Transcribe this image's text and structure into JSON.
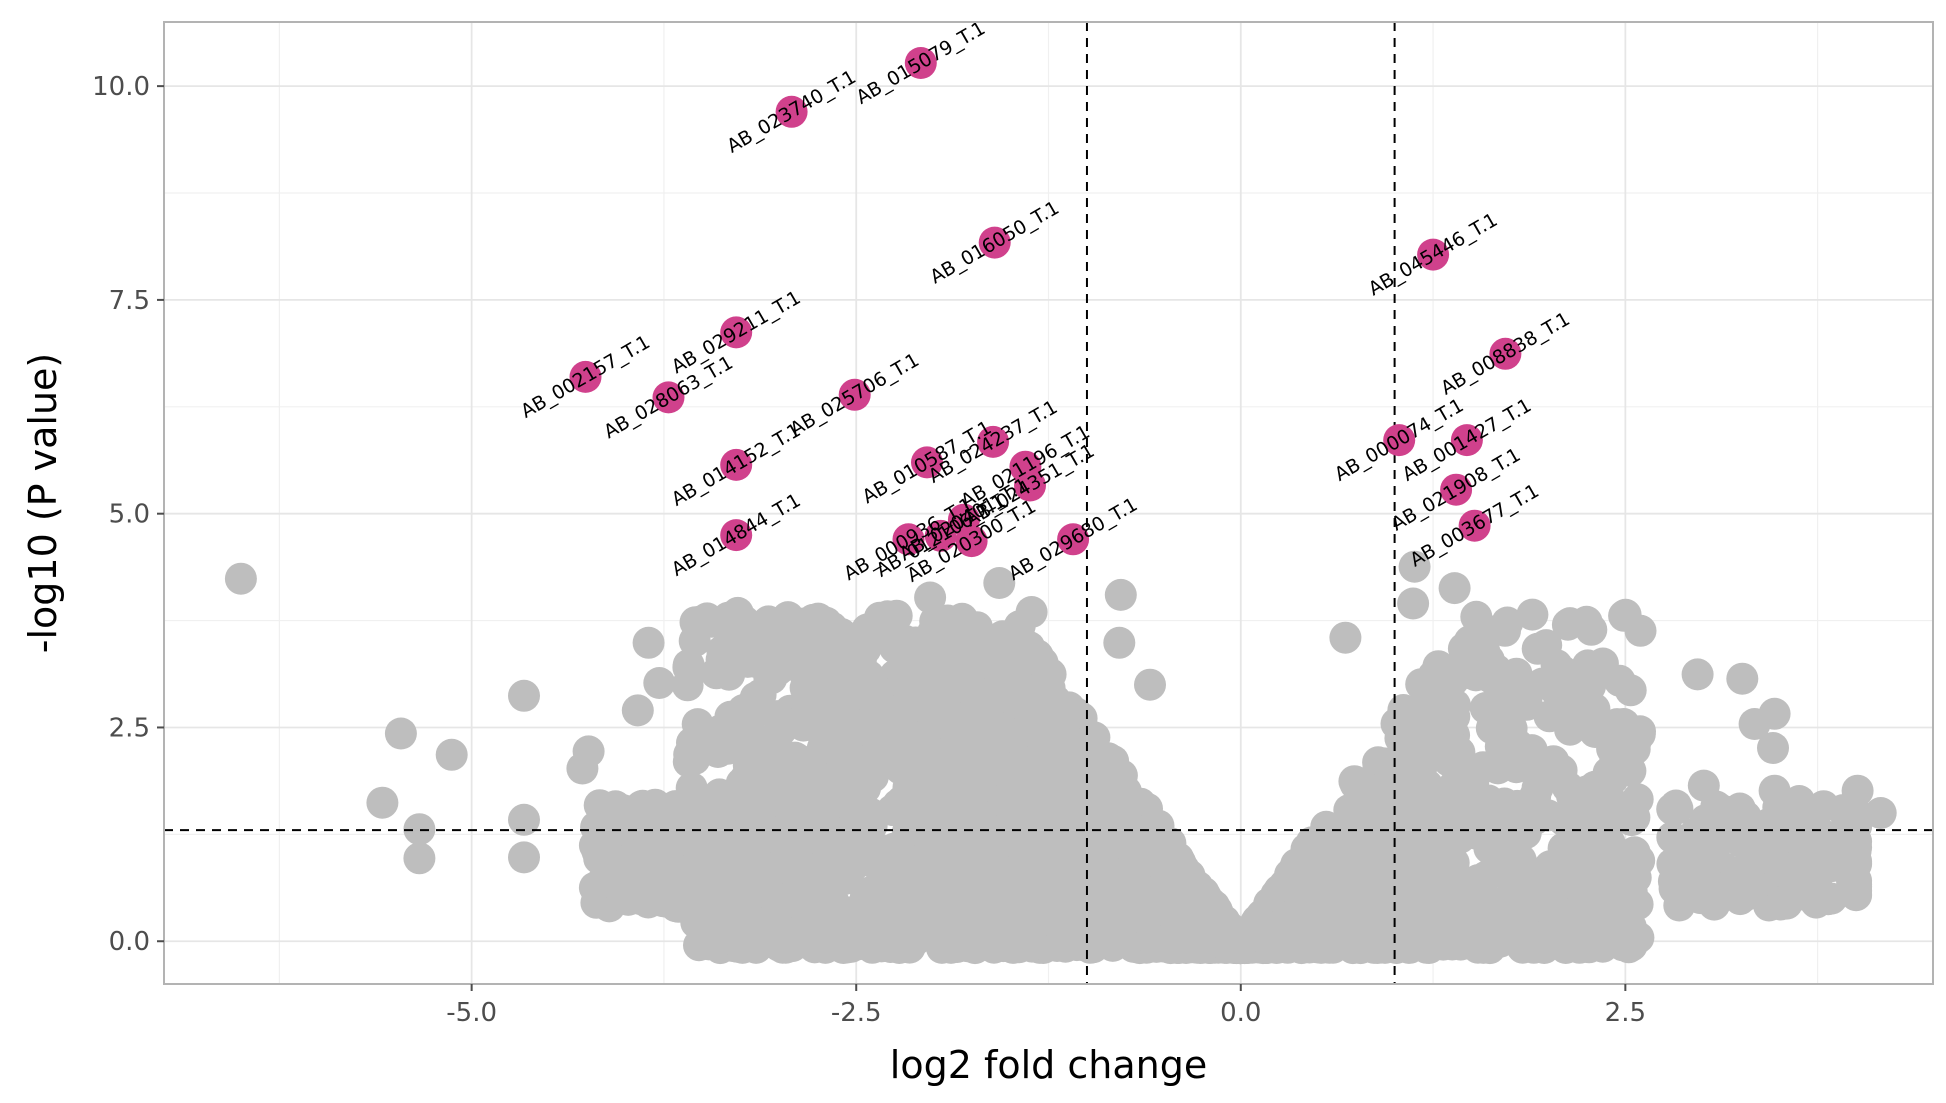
{
  "chart_data": {
    "type": "scatter",
    "xlabel": "log2 fold change",
    "ylabel": "-log10 (P value)",
    "xlim": [
      -7.0,
      4.5
    ],
    "ylim": [
      -0.5,
      10.75
    ],
    "x_ticks": [
      {
        "value": -5.0,
        "label": "-5.0"
      },
      {
        "value": -2.5,
        "label": "-2.5"
      },
      {
        "value": 0.0,
        "label": "0.0"
      },
      {
        "value": 2.5,
        "label": "2.5"
      }
    ],
    "y_ticks": [
      {
        "value": 0.0,
        "label": "0.0"
      },
      {
        "value": 2.5,
        "label": "2.5"
      },
      {
        "value": 5.0,
        "label": "5.0"
      },
      {
        "value": 7.5,
        "label": "7.5"
      },
      {
        "value": 10.0,
        "label": "10.0"
      }
    ],
    "grid": true,
    "thresholds": {
      "vertical": [
        -1.0,
        1.0
      ],
      "horizontal": [
        1.3
      ]
    },
    "colors": {
      "significant": "#d0418c",
      "background_points": "#bebebe",
      "grid": "#e6e6e6",
      "panel_border": "#b3b3b3"
    },
    "significant_points": [
      {
        "x": -2.08,
        "y": 10.27,
        "label": "AB_015079_T.1"
      },
      {
        "x": -2.92,
        "y": 9.7,
        "label": "AB_023740_T.1"
      },
      {
        "x": -1.6,
        "y": 8.17,
        "label": "AB_016050_T.1"
      },
      {
        "x": 1.25,
        "y": 8.03,
        "label": "AB_045446_T.1"
      },
      {
        "x": -3.28,
        "y": 7.12,
        "label": "AB_029211_T.1"
      },
      {
        "x": 1.72,
        "y": 6.87,
        "label": "AB_008838_T.1"
      },
      {
        "x": -4.26,
        "y": 6.6,
        "label": "AB_002157_T.1"
      },
      {
        "x": -3.72,
        "y": 6.36,
        "label": "AB_028063_T.1"
      },
      {
        "x": -2.51,
        "y": 6.39,
        "label": "AB_025706_T.1"
      },
      {
        "x": -1.61,
        "y": 5.84,
        "label": "AB_024237_T.1"
      },
      {
        "x": 1.03,
        "y": 5.86,
        "label": "AB_000074_T.1"
      },
      {
        "x": 1.47,
        "y": 5.86,
        "label": "AB_001427_T.1"
      },
      {
        "x": -2.04,
        "y": 5.6,
        "label": "AB_010587_T.1"
      },
      {
        "x": -3.28,
        "y": 5.57,
        "label": "AB_014152_T.1"
      },
      {
        "x": -1.4,
        "y": 5.55,
        "label": "AB_021196_T.1"
      },
      {
        "x": -1.37,
        "y": 5.33,
        "label": "AB_024351_T.1"
      },
      {
        "x": 1.4,
        "y": 5.28,
        "label": "AB_021908_T.1"
      },
      {
        "x": -1.8,
        "y": 4.93,
        "label": "AB_020401_T.1"
      },
      {
        "x": 1.52,
        "y": 4.86,
        "label": "AB_003677_T.1"
      },
      {
        "x": -3.28,
        "y": 4.75,
        "label": "AB_014844_T.1"
      },
      {
        "x": -2.16,
        "y": 4.7,
        "label": "AB_000936_T.1"
      },
      {
        "x": -1.95,
        "y": 4.74,
        "label": "AB_012106_T.1"
      },
      {
        "x": -1.75,
        "y": 4.68,
        "label": "AB_020300_T.1"
      },
      {
        "x": -1.09,
        "y": 4.7,
        "label": "AB_029680_T.1"
      }
    ]
  }
}
